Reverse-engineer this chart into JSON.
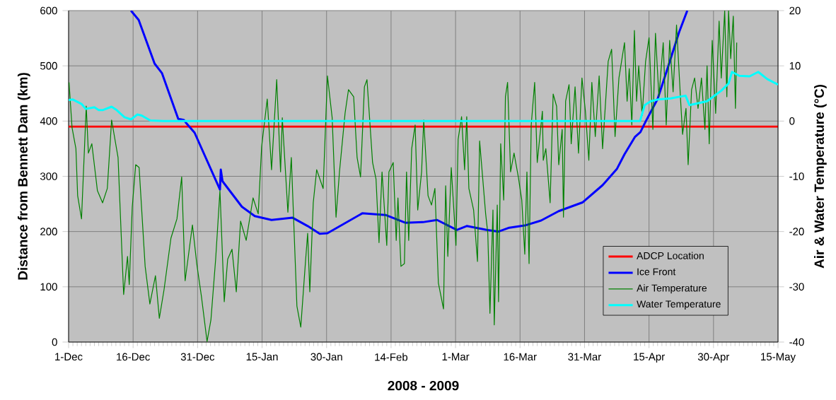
{
  "chart_data": {
    "type": "line",
    "xlabel": "2008 - 2009",
    "ylabel": "Distance from Bennett Dam (km)",
    "y2label": "Air & Water Temperature (°C)",
    "xlim": [
      "2008-12-01",
      "2009-05-15"
    ],
    "xticks": [
      {
        "value": "2008-12-01",
        "label": "1-Dec"
      },
      {
        "value": "2008-12-16",
        "label": "16-Dec"
      },
      {
        "value": "2008-12-31",
        "label": "31-Dec"
      },
      {
        "value": "2009-01-15",
        "label": "15-Jan"
      },
      {
        "value": "2009-01-30",
        "label": "30-Jan"
      },
      {
        "value": "2009-02-14",
        "label": "14-Feb"
      },
      {
        "value": "2009-03-01",
        "label": "1-Mar"
      },
      {
        "value": "2009-03-16",
        "label": "16-Mar"
      },
      {
        "value": "2009-03-31",
        "label": "31-Mar"
      },
      {
        "value": "2009-04-15",
        "label": "15-Apr"
      },
      {
        "value": "2009-04-30",
        "label": "30-Apr"
      },
      {
        "value": "2009-05-15",
        "label": "15-May"
      }
    ],
    "ylim": [
      0,
      600
    ],
    "yticks": [
      0,
      100,
      200,
      300,
      400,
      500,
      600
    ],
    "y2lim": [
      -40,
      20
    ],
    "y2ticks": [
      -40,
      -30,
      -20,
      -10,
      0,
      10,
      20
    ],
    "grid": true,
    "legend": "bottom right",
    "marker": "none",
    "line_style": "solid",
    "series": [
      {
        "name": "ADCP Location",
        "color": "#ff0000",
        "x": [
          "2008-12-01",
          "2009-05-15"
        ],
        "values": [
          390,
          390
        ]
      },
      {
        "name": "Ice Front",
        "color": "#0000ff",
        "x": [
          "2008-12-15T12:00",
          "2008-12-17T07:12",
          "2008-12-21",
          "2008-12-22T16:48",
          "2008-12-26T12:00",
          "2008-12-27T19:12",
          "2008-12-28T07:12",
          "2008-12-30T07:12",
          "2009-01-05T04:48",
          "2009-01-05T09:36",
          "2009-01-05T19:12",
          "2009-01-10T07:12",
          "2009-01-13T07:12",
          "2009-01-17T04:48",
          "2009-01-22T02:24",
          "2009-01-25T14:24",
          "2009-01-28T09:36",
          "2009-01-30T04:48",
          "2009-02-07T07:12",
          "2009-02-12T16:48",
          "2009-02-17T07:12",
          "2009-02-21T09:36",
          "2009-02-24T16:48",
          "2009-03-01T07:12",
          "2009-03-03T14:24",
          "2009-03-08T04:48",
          "2009-03-11",
          "2009-03-13T12:00",
          "2009-03-17T02:24",
          "2009-03-20T21:36",
          "2009-03-25",
          "2009-03-30T14:24",
          "2009-04-04T04:48",
          "2009-04-07T12:00",
          "2009-04-09T07:12",
          "2009-04-11T16:48",
          "2009-04-13",
          "2009-04-14T04:48",
          "2009-04-17",
          "2009-04-19T12:00",
          "2009-04-22",
          "2009-04-23T21:36"
        ],
        "values": [
          600,
          583,
          504,
          487,
          404,
          402,
          397,
          379,
          276,
          312,
          291,
          245,
          228,
          221,
          225,
          210,
          196,
          197,
          233,
          230,
          216,
          217,
          221,
          203,
          210,
          203,
          200,
          207,
          211,
          220,
          237,
          253,
          284,
          313,
          340,
          371,
          380,
          399,
          440,
          500,
          561,
          600
        ]
      },
      {
        "name": "Air Temperature",
        "color": "#008000",
        "axis": "y2",
        "x": [
          "2008-12-01T02:24",
          "2008-12-01T19:12",
          "2008-12-02T16:48",
          "2008-12-03T02:24",
          "2008-12-04",
          "2008-12-05T02:24",
          "2008-12-05T14:24",
          "2008-12-06T09:36",
          "2008-12-07T16:48",
          "2008-12-08T21:36",
          "2008-12-10",
          "2008-12-11",
          "2008-12-12T12:00",
          "2008-12-13T19:12",
          "2008-12-14T16:48",
          "2008-12-15T02:24",
          "2008-12-15T19:12",
          "2008-12-16T14:24",
          "2008-12-17T09:36",
          "2008-12-18T19:12",
          "2008-12-19T21:36",
          "2008-12-21T04:48",
          "2008-12-22T02:24",
          "2008-12-23T04:48",
          "2008-12-24T19:12",
          "2008-12-26T04:48",
          "2008-12-27T07:12",
          "2008-12-28T02:24",
          "2008-12-29T19:12",
          "2008-12-30T19:12",
          "2008-12-31T21:36",
          "2009-01-02T04:48",
          "2009-01-03T02:24",
          "2009-01-04T04:48",
          "2009-01-05T04:48",
          "2009-01-06T04:48",
          "2009-01-07",
          "2009-01-08",
          "2009-01-09",
          "2009-01-10",
          "2009-01-11T07:12",
          "2009-01-12T21:36",
          "2009-01-14T02:24",
          "2009-01-14T21:36",
          "2009-01-16T04:48",
          "2009-01-17T04:48",
          "2009-01-18T09:36",
          "2009-01-19T07:12",
          "2009-01-19T16:48",
          "2009-01-21",
          "2009-01-21T19:12",
          "2009-01-23T02:24",
          "2009-01-24",
          "2009-01-25T02:24",
          "2009-01-25T14:24",
          "2009-01-26T02:24",
          "2009-01-26T21:36",
          "2009-01-27T16:48",
          "2009-01-29T04:48",
          "2009-01-30T04:48",
          "2009-01-31T07:12",
          "2009-02-01T04:48",
          "2009-02-02",
          "2009-02-03T07:12",
          "2009-02-04T02:24",
          "2009-02-05T07:12",
          "2009-02-06T02:24",
          "2009-02-06T21:36",
          "2009-02-07T19:12",
          "2009-02-08T09:36",
          "2009-02-09T16:48",
          "2009-02-10T12:00",
          "2009-02-11T04:48",
          "2009-02-11T21:36",
          "2009-02-13",
          "2009-02-13T12:00",
          "2009-02-14T12:00",
          "2009-02-15T04:48",
          "2009-02-15T14:24",
          "2009-02-16T07:12",
          "2009-02-17T02:24",
          "2009-02-17T14:24",
          "2009-02-18T02:24",
          "2009-02-18T19:12",
          "2009-02-19T14:24",
          "2009-02-20T04:48",
          "2009-02-21T02:24",
          "2009-02-21T14:24",
          "2009-02-22T14:24",
          "2009-02-23T09:36",
          "2009-02-24T04:48",
          "2009-02-25",
          "2009-02-26T04:48",
          "2009-02-26T16:48",
          "2009-02-27T04:48",
          "2009-02-28",
          "2009-03-01T02:24",
          "2009-03-01T14:24",
          "2009-03-02T09:36",
          "2009-03-03T02:24",
          "2009-03-03T14:24",
          "2009-03-04T02:24",
          "2009-03-05T04:48",
          "2009-03-06T02:24",
          "2009-03-06T14:24",
          "2009-03-08",
          "2009-03-08T12:00",
          "2009-03-09",
          "2009-03-09T16:48",
          "2009-03-10",
          "2009-03-10T16:48",
          "2009-03-11",
          "2009-03-11T12:00",
          "2009-03-12T04:48",
          "2009-03-12T14:24",
          "2009-03-13T02:24",
          "2009-03-13T19:12",
          "2009-03-14T14:24",
          "2009-03-15T14:24",
          "2009-03-16T09:36",
          "2009-03-17T02:24",
          "2009-03-17T14:24",
          "2009-03-18T02:24",
          "2009-03-18T14:24",
          "2009-03-19T09:36",
          "2009-03-20",
          "2009-03-21T04:48",
          "2009-03-21T09:36",
          "2009-03-22",
          "2009-03-23",
          "2009-03-23T16:48",
          "2009-03-24T12:00",
          "2009-03-25",
          "2009-03-25T19:12",
          "2009-03-26T02:24",
          "2009-03-26T14:24",
          "2009-03-27T09:36",
          "2009-03-27T21:36",
          "2009-03-28T19:12",
          "2009-03-29T14:24",
          "2009-03-30T09:36",
          "2009-03-31T04:48",
          "2009-04-01",
          "2009-04-01T16:48",
          "2009-04-02T12:00",
          "2009-04-03T09:36",
          "2009-04-04T04:48",
          "2009-04-05T12:00",
          "2009-04-06T07:12",
          "2009-04-07T02:24",
          "2009-04-08",
          "2009-04-09T07:12",
          "2009-04-09T21:36",
          "2009-04-10T09:36",
          "2009-04-11",
          "2009-04-11T14:24",
          "2009-04-12T02:24",
          "2009-04-12T14:24",
          "2009-04-13T09:36",
          "2009-04-14T04:48",
          "2009-04-15",
          "2009-04-15T21:36",
          "2009-04-16T12:00",
          "2009-04-17T07:12",
          "2009-04-18T07:12",
          "2009-04-19",
          "2009-04-19T19:12",
          "2009-04-20T14:24",
          "2009-04-21T09:36",
          "2009-04-22T07:12",
          "2009-04-22T19:12",
          "2009-04-23T14:24",
          "2009-04-24T02:24",
          "2009-04-24T21:36",
          "2009-04-25T14:24",
          "2009-04-26T09:36",
          "2009-04-27T04:48",
          "2009-04-28",
          "2009-04-28T12:00",
          "2009-04-29",
          "2009-04-29T16:48",
          "2009-04-30T12:00",
          "2009-05-01T07:12",
          "2009-05-01T19:12",
          "2009-05-02T14:24",
          "2009-05-03T02:24",
          "2009-05-03T12:00",
          "2009-05-04",
          "2009-05-04T14:24",
          "2009-05-05T02:24",
          "2009-05-05T09:36"
        ],
        "values": [
          7.0,
          -1.2,
          -5.0,
          -13.5,
          -17.7,
          2.7,
          -5.8,
          -4.1,
          -12.6,
          -14.8,
          -12.2,
          0.2,
          -6.6,
          -31.4,
          -24.5,
          -29.6,
          -15.6,
          -7.9,
          -8.4,
          -26.3,
          -33.1,
          -28.0,
          -35.7,
          -30.5,
          -21.2,
          -17.7,
          -10.1,
          -28.9,
          -18.8,
          -25.8,
          -31.8,
          -39.9,
          -36.0,
          -25.0,
          -12.6,
          -32.7,
          -25.0,
          -23.2,
          -30.9,
          -18.1,
          -21.6,
          -13.9,
          -16.8,
          -4.6,
          4.0,
          -8.8,
          7.5,
          -9.2,
          0.6,
          -16.5,
          -6.6,
          -33.5,
          -37.3,
          -25.4,
          -20.3,
          -30.9,
          -14.8,
          -8.8,
          -12.2,
          8.2,
          0.6,
          -17.4,
          -9.2,
          1.4,
          5.7,
          4.4,
          -6.6,
          -10.1,
          6.2,
          7.5,
          -7.5,
          -10.5,
          -22.0,
          -9.2,
          -22.5,
          -9.2,
          -7.5,
          -21.6,
          -13.9,
          -26.3,
          -25.8,
          -9.2,
          -21.6,
          -5.0,
          -0.7,
          -16.1,
          -9.2,
          0.2,
          -13.5,
          -15.2,
          -12.2,
          -29.3,
          -34.0,
          -11.7,
          -24.5,
          -8.4,
          -22.5,
          -3.3,
          0.8,
          -8.8,
          0.8,
          -12.2,
          -16.1,
          -25.4,
          -3.6,
          -16.8,
          -20.3,
          -34.8,
          -16.1,
          -36.9,
          -15.2,
          -32.7,
          -4.1,
          -14.3,
          4.4,
          7.0,
          -9.2,
          -5.8,
          -10.1,
          -14.3,
          -24.1,
          -9.2,
          -25.8,
          -0.7,
          7.0,
          -7.5,
          1.8,
          -7.1,
          -5.0,
          -14.8,
          4.9,
          2.7,
          -7.9,
          -1.5,
          -17.4,
          3.6,
          6.6,
          -4.1,
          6.2,
          -5.8,
          7.8,
          1.8,
          -7.1,
          7.0,
          -2.8,
          8.2,
          -5.0,
          10.8,
          13.0,
          -2.8,
          7.8,
          14.2,
          3.6,
          9.5,
          -0.7,
          16.4,
          3.6,
          10.0,
          1.0,
          10.8,
          15.1,
          -1.5,
          15.9,
          4.4,
          14.2,
          -0.7,
          14.6,
          5.3,
          17.4,
          4.4,
          -2.4,
          2.3,
          -7.9,
          5.7,
          7.8,
          2.3,
          7.8,
          -1.5,
          10.0,
          -4.1,
          14.6,
          1.4,
          18.1,
          7.8,
          20,
          4.4,
          20,
          11.3,
          19.0,
          2.3,
          14.2
        ]
      },
      {
        "name": "Water Temperature",
        "color": "#00ffff",
        "axis": "y2",
        "x": [
          "2008-12-01",
          "2008-12-02",
          "2008-12-04",
          "2008-12-05",
          "2008-12-07",
          "2008-12-08",
          "2008-12-09",
          "2008-12-11",
          "2008-12-12",
          "2008-12-14",
          "2008-12-15T12:00",
          "2008-12-17",
          "2008-12-18",
          "2008-12-20",
          "2008-12-23",
          "2009-04-12T21:36",
          "2009-04-14",
          "2009-04-15T09:36",
          "2009-04-17",
          "2009-04-20",
          "2009-04-23T12:00",
          "2009-04-24T09:36",
          "2009-04-28T12:00",
          "2009-05-01T19:12",
          "2009-05-03T12:00",
          "2009-05-04T07:12",
          "2009-05-06",
          "2009-05-08T09:36",
          "2009-05-10T09:36",
          "2009-05-12T12:00",
          "2009-05-15"
        ],
        "values": [
          3.8,
          3.9,
          3.1,
          2.2,
          2.5,
          2.0,
          2.0,
          2.6,
          2.1,
          0.7,
          0.3,
          1.2,
          1.0,
          0.1,
          0,
          0,
          2.9,
          3.6,
          3.9,
          4.1,
          4.6,
          2.9,
          3.6,
          5.5,
          6.8,
          8.9,
          8.2,
          8.1,
          8.9,
          7.6,
          6.6
        ]
      }
    ]
  }
}
